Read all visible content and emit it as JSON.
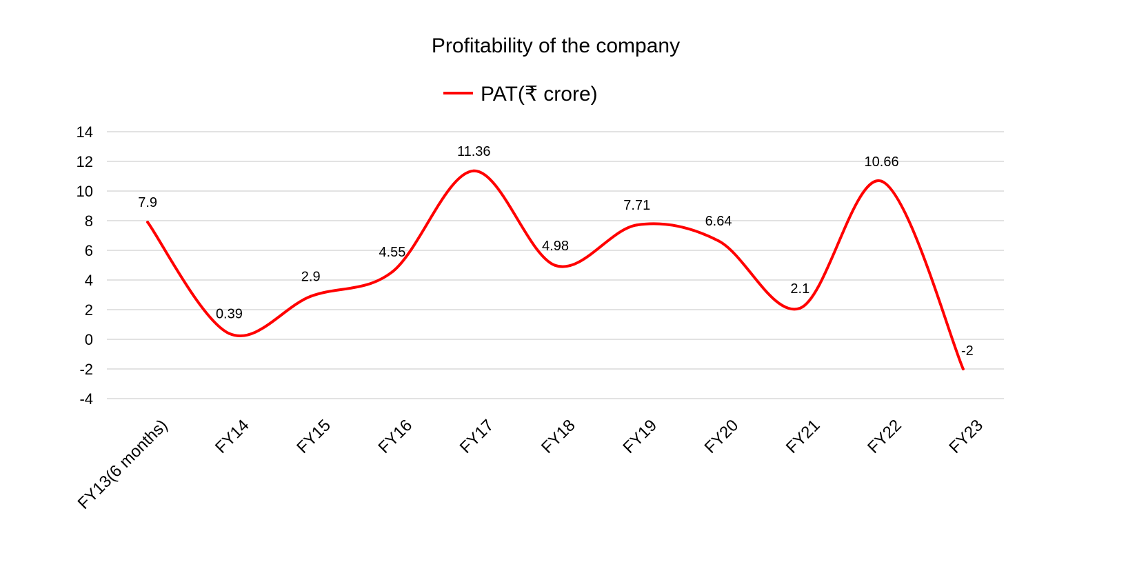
{
  "chart_data": {
    "type": "line",
    "title": "Profitability of the company",
    "categories": [
      "FY13(6 months)",
      "FY14",
      "FY15",
      "FY16",
      "FY17",
      "FY18",
      "FY19",
      "FY20",
      "FY21",
      "FY22",
      "FY23"
    ],
    "series": [
      {
        "name": "PAT(₹ crore)",
        "values": [
          7.9,
          0.39,
          2.9,
          4.55,
          11.36,
          4.98,
          7.71,
          6.64,
          2.1,
          10.66,
          -2
        ],
        "data_labels": [
          "7.9",
          "0.39",
          "2.9",
          "4.55",
          "11.36",
          "4.98",
          "7.71",
          "6.64",
          "2.1",
          "10.66",
          "-2"
        ],
        "color": "#ff0000",
        "smooth": true
      }
    ],
    "ylim": [
      -4,
      14
    ],
    "yticks": [
      "14",
      "12",
      "10",
      "8",
      "6",
      "4",
      "2",
      "0",
      "-2",
      "-4"
    ],
    "ytick_values": [
      14,
      12,
      10,
      8,
      6,
      4,
      2,
      0,
      -2,
      -4
    ],
    "xlabel": "",
    "ylabel": "",
    "grid": true,
    "grid_color": "#d9d9d9",
    "legend_position": "top-center"
  }
}
